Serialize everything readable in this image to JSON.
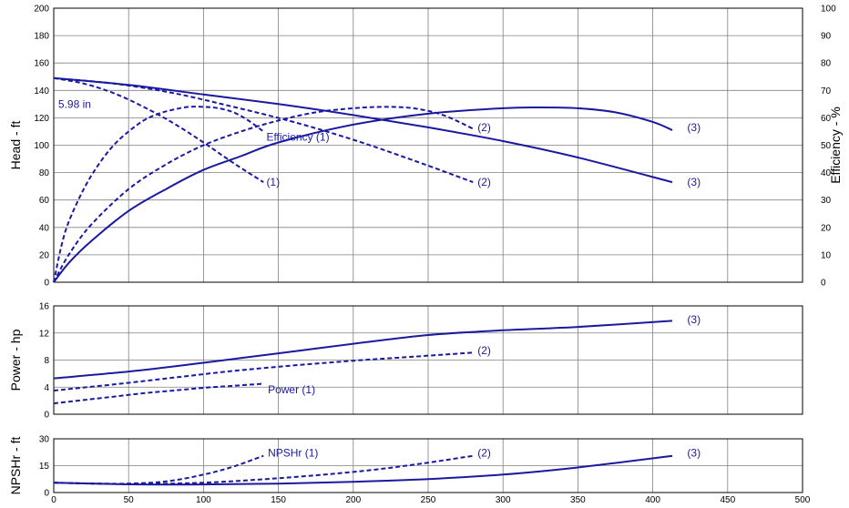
{
  "chart_data": [
    {
      "type": "line",
      "panel": "head",
      "ylabel": "Head - ft",
      "y2label": "Efficiency - %",
      "xlim": [
        0,
        500
      ],
      "ylim": [
        0,
        200
      ],
      "y2lim": [
        0,
        100
      ],
      "x_ticks": [
        0,
        50,
        100,
        150,
        200,
        250,
        300,
        350,
        400,
        450,
        500
      ],
      "y_ticks": [
        0,
        20,
        40,
        60,
        80,
        100,
        120,
        140,
        160,
        180,
        200
      ],
      "y2_ticks": [
        0,
        10,
        20,
        30,
        40,
        50,
        60,
        70,
        80,
        90,
        100
      ],
      "grid": true,
      "annotations": [
        {
          "text": "5.98 in",
          "x": 3,
          "y": 130
        },
        {
          "text": "Efficiency (1)",
          "x": 142,
          "y": 106
        },
        {
          "text": "(1)",
          "x": 142,
          "y": 73
        },
        {
          "text": "(2)",
          "x": 283,
          "y": 113
        },
        {
          "text": "(2)",
          "x": 283,
          "y": 73
        },
        {
          "text": "(3)",
          "x": 423,
          "y": 113
        },
        {
          "text": "(3)",
          "x": 423,
          "y": 73
        }
      ],
      "series": [
        {
          "curve": "head (1)",
          "style": "dashed",
          "axis": "left",
          "x": [
            0,
            20,
            40,
            60,
            80,
            100,
            120,
            140
          ],
          "y": [
            149,
            145,
            138,
            128,
            116,
            102,
            87,
            73
          ]
        },
        {
          "curve": "head (2)",
          "style": "dashed",
          "axis": "left",
          "x": [
            0,
            40,
            80,
            120,
            160,
            200,
            240,
            280
          ],
          "y": [
            149,
            145,
            138,
            128,
            117,
            104,
            89,
            73
          ]
        },
        {
          "curve": "head (3)",
          "style": "solid",
          "axis": "left",
          "x": [
            0,
            50,
            100,
            150,
            200,
            250,
            300,
            350,
            413
          ],
          "y": [
            149,
            144,
            137,
            130,
            122,
            113,
            103,
            91,
            73
          ]
        },
        {
          "curve": "efficiency (1)",
          "style": "dashed",
          "axis": "right",
          "x": [
            0,
            5,
            10,
            20,
            30,
            40,
            50,
            60,
            70,
            80,
            90,
            100,
            110,
            120,
            130,
            140
          ],
          "y": [
            0,
            13,
            22,
            34,
            43,
            50,
            55,
            59,
            61.5,
            63,
            64,
            64,
            63.5,
            62,
            59,
            55
          ]
        },
        {
          "curve": "efficiency (2)",
          "style": "dashed",
          "axis": "right",
          "x": [
            0,
            10,
            25,
            50,
            75,
            100,
            125,
            150,
            175,
            200,
            220,
            240,
            260,
            280
          ],
          "y": [
            0,
            10,
            21,
            34,
            43,
            50,
            55,
            59,
            62,
            63.5,
            64,
            63.5,
            61,
            56
          ]
        },
        {
          "curve": "efficiency (3)",
          "style": "solid",
          "axis": "right",
          "x": [
            0,
            10,
            25,
            50,
            75,
            100,
            125,
            150,
            200,
            250,
            300,
            325,
            350,
            375,
            400,
            413
          ],
          "y": [
            0,
            7,
            15,
            26,
            34,
            41,
            46,
            51,
            57.5,
            61.5,
            63.5,
            63.8,
            63.5,
            62,
            58.5,
            55.5
          ]
        }
      ]
    },
    {
      "type": "line",
      "panel": "power",
      "ylabel": "Power - hp",
      "xlim": [
        0,
        500
      ],
      "ylim": [
        0,
        16
      ],
      "x_ticks": [
        0,
        50,
        100,
        150,
        200,
        250,
        300,
        350,
        400,
        450,
        500
      ],
      "y_ticks": [
        0,
        4,
        8,
        12,
        16
      ],
      "grid": true,
      "annotations": [
        {
          "text": "Power (1)",
          "x": 143,
          "y": 3.6
        },
        {
          "text": "(2)",
          "x": 283,
          "y": 9.4
        },
        {
          "text": "(3)",
          "x": 423,
          "y": 14.0
        }
      ],
      "series": [
        {
          "curve": "power (1)",
          "style": "dashed",
          "x": [
            0,
            20,
            40,
            60,
            80,
            100,
            120,
            140
          ],
          "y": [
            1.6,
            2.1,
            2.6,
            3.1,
            3.5,
            3.9,
            4.2,
            4.5
          ]
        },
        {
          "curve": "power (2)",
          "style": "dashed",
          "x": [
            0,
            40,
            80,
            120,
            160,
            200,
            240,
            280
          ],
          "y": [
            3.5,
            4.4,
            5.4,
            6.4,
            7.2,
            7.9,
            8.5,
            9.1
          ]
        },
        {
          "curve": "power (3)",
          "style": "solid",
          "x": [
            0,
            50,
            100,
            150,
            200,
            250,
            300,
            350,
            413
          ],
          "y": [
            5.3,
            6.3,
            7.6,
            9.0,
            10.4,
            11.7,
            12.4,
            12.9,
            13.8
          ]
        }
      ]
    },
    {
      "type": "line",
      "panel": "npshr",
      "ylabel": "NPSHr - ft",
      "xlim": [
        0,
        500
      ],
      "ylim": [
        0,
        30
      ],
      "x_ticks": [
        0,
        50,
        100,
        150,
        200,
        250,
        300,
        350,
        400,
        450,
        500
      ],
      "y_ticks": [
        0,
        15,
        30
      ],
      "grid": true,
      "annotations": [
        {
          "text": "NPSHr (1)",
          "x": 143,
          "y": 22
        },
        {
          "text": "(2)",
          "x": 283,
          "y": 22
        },
        {
          "text": "(3)",
          "x": 423,
          "y": 22
        }
      ],
      "series": [
        {
          "curve": "npshr (1)",
          "style": "dashed",
          "x": [
            0,
            25,
            50,
            75,
            100,
            120,
            140
          ],
          "y": [
            5.5,
            5.0,
            5.0,
            6.2,
            10.0,
            14.5,
            20.5
          ]
        },
        {
          "curve": "npshr (2)",
          "style": "dashed",
          "x": [
            0,
            50,
            100,
            150,
            200,
            240,
            280
          ],
          "y": [
            5.5,
            4.8,
            5.5,
            8.0,
            11.5,
            15.5,
            20.5
          ]
        },
        {
          "curve": "npshr (3)",
          "style": "solid",
          "x": [
            0,
            50,
            100,
            150,
            200,
            250,
            300,
            350,
            413
          ],
          "y": [
            5.5,
            4.6,
            4.5,
            5.0,
            6.0,
            7.5,
            10.0,
            14.0,
            20.5
          ]
        }
      ]
    }
  ]
}
